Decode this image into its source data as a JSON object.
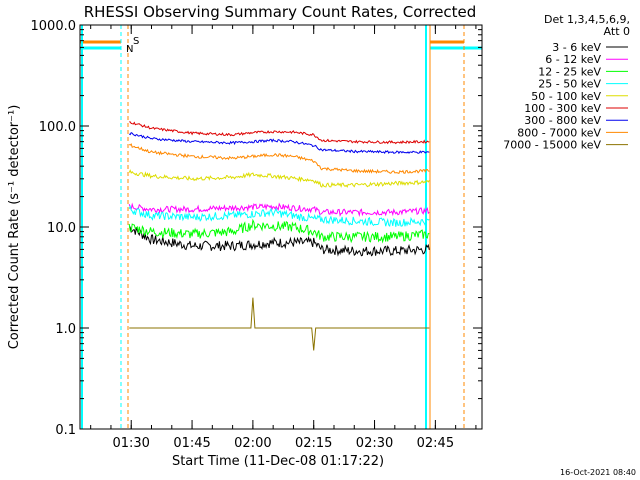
{
  "chart_data": {
    "type": "line",
    "title": "RHESSI Observing Summary Count Rates, Corrected",
    "xlabel": "Start Time (11-Dec-08 01:17:22)",
    "ylabel": "Corrected Count Rate (s⁻¹ detector⁻¹)",
    "y_scale": "log",
    "ylim": [
      0.1,
      1000
    ],
    "y_ticks": [
      0.1,
      1,
      10,
      100,
      1000
    ],
    "y_tick_labels": [
      "0.1",
      "1.0",
      "10.0",
      "100.0",
      "1000.0"
    ],
    "xlim": [
      "01:17:22",
      "02:56:30"
    ],
    "x_ticks": [
      "01:30",
      "01:45",
      "02:00",
      "02:15",
      "02:30",
      "02:45"
    ],
    "legend_header": [
      "Det 1,3,4,5,6,9,",
      "Att 0"
    ],
    "legend_position": "right",
    "series": [
      {
        "name": "3 - 6 keV",
        "color": "#000000",
        "x": [
          "01:29:30",
          "01:35",
          "01:45",
          "01:55",
          "02:05",
          "02:15",
          "02:17",
          "02:25",
          "02:35",
          "02:43:30"
        ],
        "y": [
          10,
          7.5,
          6.5,
          6.5,
          7,
          7,
          6,
          5.8,
          5.8,
          6
        ]
      },
      {
        "name": "6 - 12 keV",
        "color": "#ff00ff",
        "x": [
          "01:29:30",
          "01:35",
          "01:45",
          "01:55",
          "02:05",
          "02:15",
          "02:17",
          "02:25",
          "02:35",
          "02:43:30"
        ],
        "y": [
          16,
          15,
          15,
          15.5,
          16,
          15,
          14,
          14,
          14,
          14.5
        ]
      },
      {
        "name": "12 - 25 keV",
        "color": "#00ff00",
        "x": [
          "01:29:30",
          "01:35",
          "01:45",
          "01:55",
          "02:00",
          "02:10",
          "02:15",
          "02:17",
          "02:25",
          "02:35",
          "02:43:30"
        ],
        "y": [
          10,
          9,
          8.5,
          9,
          10.5,
          10,
          9,
          8,
          8,
          8,
          8.5
        ]
      },
      {
        "name": "25 - 50 keV",
        "color": "#00ffff",
        "x": [
          "01:29:30",
          "01:35",
          "01:45",
          "01:55",
          "02:05",
          "02:15",
          "02:25",
          "02:35",
          "02:43:30"
        ],
        "y": [
          15,
          13,
          12.5,
          13,
          14,
          12,
          11.5,
          11,
          11.5
        ]
      },
      {
        "name": "50 - 100 keV",
        "color": "#dddd00",
        "x": [
          "01:29:30",
          "01:35",
          "01:45",
          "01:55",
          "02:00",
          "02:05",
          "02:15",
          "02:17",
          "02:25",
          "02:35",
          "02:43:30"
        ],
        "y": [
          35,
          32,
          30,
          31,
          33,
          32,
          29,
          26,
          26,
          27,
          28
        ]
      },
      {
        "name": "100 - 300 keV",
        "color": "#dd0000",
        "x": [
          "01:29:30",
          "01:35",
          "01:45",
          "01:55",
          "02:00",
          "02:05",
          "02:10",
          "02:15",
          "02:17",
          "02:25",
          "02:35",
          "02:43:30"
        ],
        "y": [
          110,
          95,
          85,
          82,
          86,
          88,
          87,
          82,
          72,
          70,
          69,
          70
        ]
      },
      {
        "name": "300 - 800 keV",
        "color": "#0000ee",
        "x": [
          "01:29:30",
          "01:35",
          "01:45",
          "01:55",
          "02:00",
          "02:05",
          "02:10",
          "02:15",
          "02:17",
          "02:25",
          "02:35",
          "02:43:30"
        ],
        "y": [
          85,
          75,
          70,
          68,
          70,
          72,
          70,
          64,
          58,
          56,
          55,
          55
        ]
      },
      {
        "name": "800 - 7000 keV",
        "color": "#ff8800",
        "x": [
          "01:29:30",
          "01:35",
          "01:45",
          "01:55",
          "02:00",
          "02:05",
          "02:10",
          "02:15",
          "02:17",
          "02:25",
          "02:35",
          "02:43:30"
        ],
        "y": [
          65,
          55,
          50,
          48,
          50,
          52,
          50,
          45,
          38,
          36,
          35,
          36
        ]
      },
      {
        "name": "7000 - 15000 keV",
        "color": "#8b7300",
        "x": [
          "01:29:30",
          "01:35",
          "01:45",
          "01:55",
          "01:59:30",
          "02:00",
          "02:00:30",
          "02:05",
          "02:14:30",
          "02:15",
          "02:15:30",
          "02:25",
          "02:35",
          "02:43:30"
        ],
        "y": [
          1,
          1,
          1,
          1,
          1,
          2,
          1,
          1,
          1,
          0.6,
          1,
          1,
          1,
          1
        ]
      }
    ],
    "annotations": {
      "bar_labels": [
        "S",
        "N"
      ],
      "timestamp": "16-Oct-2021 08:40"
    }
  }
}
